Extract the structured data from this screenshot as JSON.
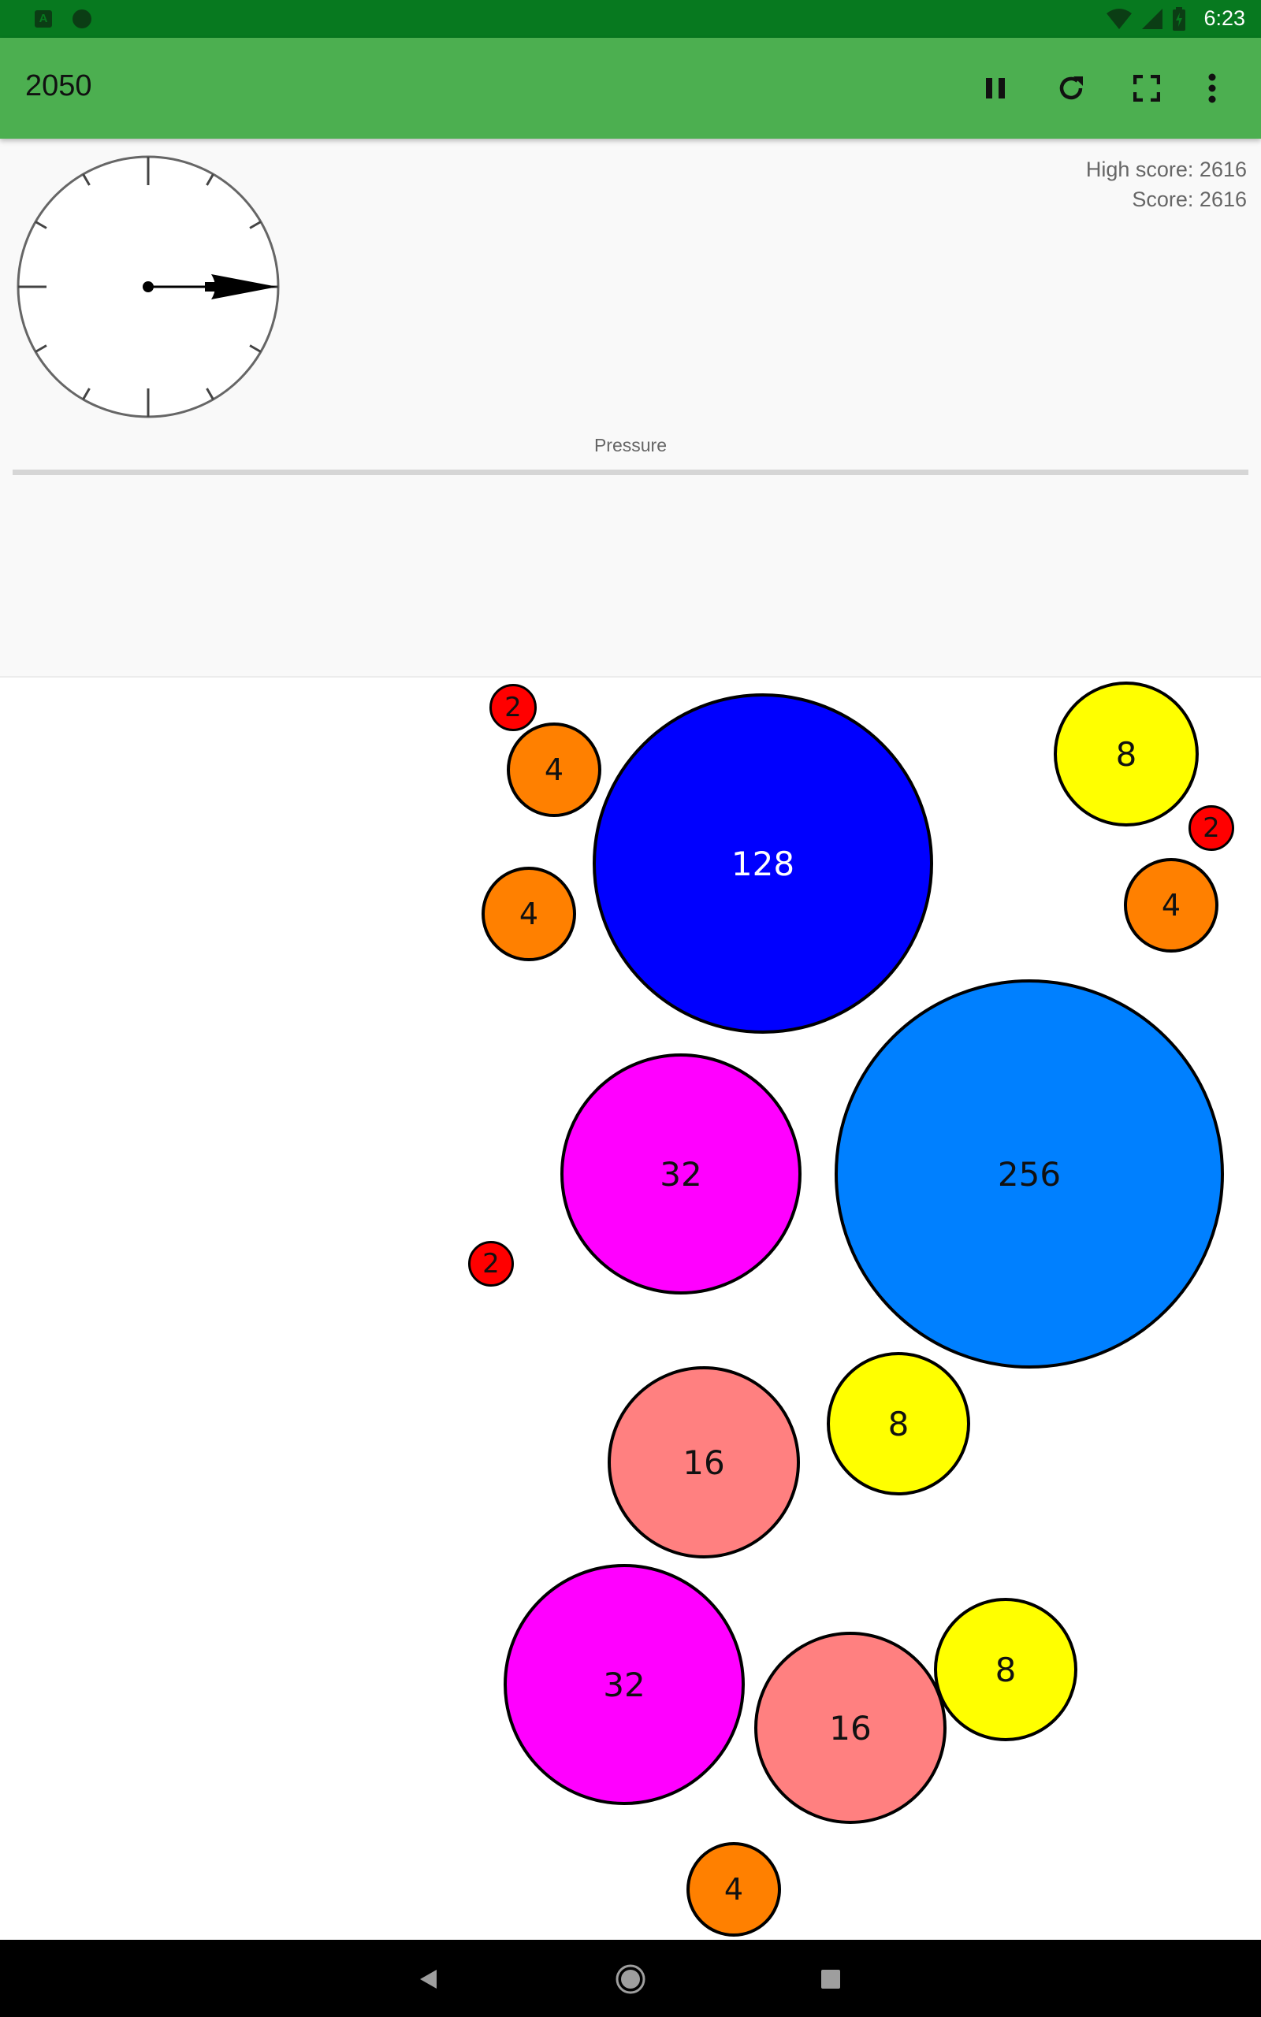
{
  "status_bar": {
    "time": "6:23",
    "icons": [
      "notification-a-icon",
      "notification-dot-icon",
      "wifi-icon",
      "signal-icon",
      "battery-icon"
    ]
  },
  "app_bar": {
    "title": "2050",
    "actions": [
      "pause-icon",
      "restart-icon",
      "fullscreen-icon",
      "more-vert-icon"
    ],
    "background": "#4caf50"
  },
  "scores": {
    "high_score": "High score: 2616",
    "score": "Score: 2616"
  },
  "pressure": {
    "label": "Pressure",
    "level": 0
  },
  "gauge": {
    "needle_direction": "right"
  },
  "bubbles": [
    {
      "value": "2",
      "color": "#ff0000"
    },
    {
      "value": "4",
      "color": "#ff8000"
    },
    {
      "value": "128",
      "color": "#0000ff",
      "text_color": "#ffffff"
    },
    {
      "value": "8",
      "color": "#ffff00"
    },
    {
      "value": "2",
      "color": "#ff0000"
    },
    {
      "value": "4",
      "color": "#ff8000"
    },
    {
      "value": "4",
      "color": "#ff8000"
    },
    {
      "value": "32",
      "color": "#ff00ff"
    },
    {
      "value": "256",
      "color": "#0080ff"
    },
    {
      "value": "2",
      "color": "#ff0000"
    },
    {
      "value": "16",
      "color": "#ff8080"
    },
    {
      "value": "8",
      "color": "#ffff00"
    },
    {
      "value": "32",
      "color": "#ff00ff"
    },
    {
      "value": "16",
      "color": "#ff8080"
    },
    {
      "value": "8",
      "color": "#ffff00"
    },
    {
      "value": "4",
      "color": "#ff8000"
    }
  ],
  "nav_bar": {
    "buttons": [
      "back-icon",
      "home-icon",
      "recents-icon"
    ]
  }
}
